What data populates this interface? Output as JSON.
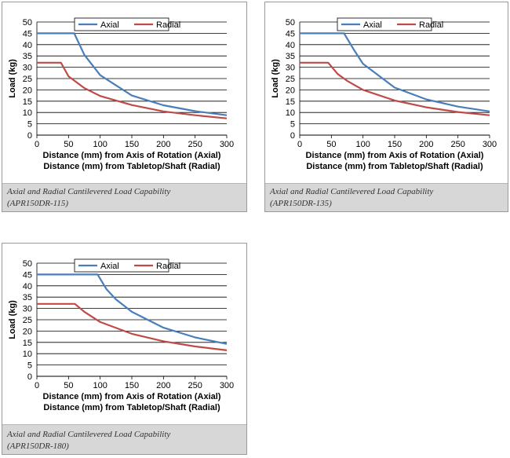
{
  "colors": {
    "axial": "#4a7ebb",
    "radial": "#be4b48",
    "grid": "#000000",
    "caption_bg": "#d7d7d7"
  },
  "panels": [
    {
      "caption_line1": "Axial and Radial Cantilevered Load Capability",
      "caption_line2": "(APR150DR-115)"
    },
    {
      "caption_line1": "Axial and Radial Cantilevered Load Capability",
      "caption_line2": "(APR150DR-135)"
    },
    {
      "caption_line1": "Axial and Radial Cantilevered Load Capability",
      "caption_line2": "(APR150DR-180)"
    }
  ],
  "chart_data": [
    {
      "type": "line",
      "title": "",
      "ylabel": "Load (kg)",
      "xlabel": "Distance (mm) from Axis of Rotation (Axial)",
      "xlabel2": "Distance (mm) from Tabletop/Shaft (Radial)",
      "xlim": [
        0,
        300
      ],
      "ylim": [
        0,
        50
      ],
      "xticks": [
        "0",
        "50",
        "100",
        "150",
        "200",
        "250",
        "300"
      ],
      "yticks": [
        "0",
        "5",
        "10",
        "15",
        "20",
        "25",
        "30",
        "35",
        "40",
        "45",
        "50"
      ],
      "grid": true,
      "legend": "top-center",
      "series": [
        {
          "name": "Axial",
          "color": "#4a7ebb",
          "x": [
            0,
            59,
            75,
            100,
            150,
            200,
            250,
            300
          ],
          "y": [
            45,
            45,
            35.5,
            26.5,
            17.5,
            13.2,
            10.6,
            8.8
          ]
        },
        {
          "name": "Radial",
          "color": "#be4b48",
          "x": [
            0,
            38,
            50,
            75,
            100,
            150,
            200,
            250,
            300
          ],
          "y": [
            32,
            32,
            26,
            20.8,
            17.3,
            13.3,
            10.5,
            8.8,
            7.4
          ]
        }
      ]
    },
    {
      "type": "line",
      "title": "",
      "ylabel": "Load (kg)",
      "xlabel": "Distance (mm) from Axis of Rotation (Axial)",
      "xlabel2": "Distance (mm) from Tabletop/Shaft (Radial)",
      "xlim": [
        0,
        300
      ],
      "ylim": [
        0,
        50
      ],
      "xticks": [
        "0",
        "50",
        "100",
        "150",
        "200",
        "250",
        "300"
      ],
      "yticks": [
        "0",
        "5",
        "10",
        "15",
        "20",
        "25",
        "30",
        "35",
        "40",
        "45",
        "50"
      ],
      "grid": true,
      "legend": "top-center",
      "series": [
        {
          "name": "Axial",
          "color": "#4a7ebb",
          "x": [
            0,
            70,
            85,
            100,
            150,
            200,
            250,
            300
          ],
          "y": [
            45,
            45,
            38,
            31.5,
            21,
            15.8,
            12.6,
            10.5
          ]
        },
        {
          "name": "Radial",
          "color": "#be4b48",
          "x": [
            0,
            45,
            60,
            75,
            100,
            150,
            200,
            250,
            300
          ],
          "y": [
            32,
            32,
            27,
            24,
            20,
            15.3,
            12.3,
            10.2,
            8.8
          ]
        }
      ]
    },
    {
      "type": "line",
      "title": "",
      "ylabel": "Load (kg)",
      "xlabel": "Distance (mm) from Axis of Rotation (Axial)",
      "xlabel2": "Distance (mm) from Tabletop/Shaft (Radial)",
      "xlim": [
        0,
        300
      ],
      "ylim": [
        0,
        50
      ],
      "xticks": [
        "0",
        "50",
        "100",
        "150",
        "200",
        "250",
        "300"
      ],
      "yticks": [
        "0",
        "5",
        "10",
        "15",
        "20",
        "25",
        "30",
        "35",
        "40",
        "45",
        "50"
      ],
      "grid": true,
      "legend": "top-center",
      "series": [
        {
          "name": "Axial",
          "color": "#4a7ebb",
          "x": [
            0,
            96,
            110,
            125,
            150,
            200,
            250,
            300
          ],
          "y": [
            45,
            45,
            38.5,
            34,
            28.5,
            21.5,
            17.2,
            14.3
          ]
        },
        {
          "name": "Radial",
          "color": "#be4b48",
          "x": [
            0,
            60,
            75,
            100,
            150,
            200,
            250,
            300
          ],
          "y": [
            32,
            32,
            28.5,
            24,
            18.8,
            15.5,
            13.2,
            11.5
          ]
        }
      ]
    }
  ]
}
